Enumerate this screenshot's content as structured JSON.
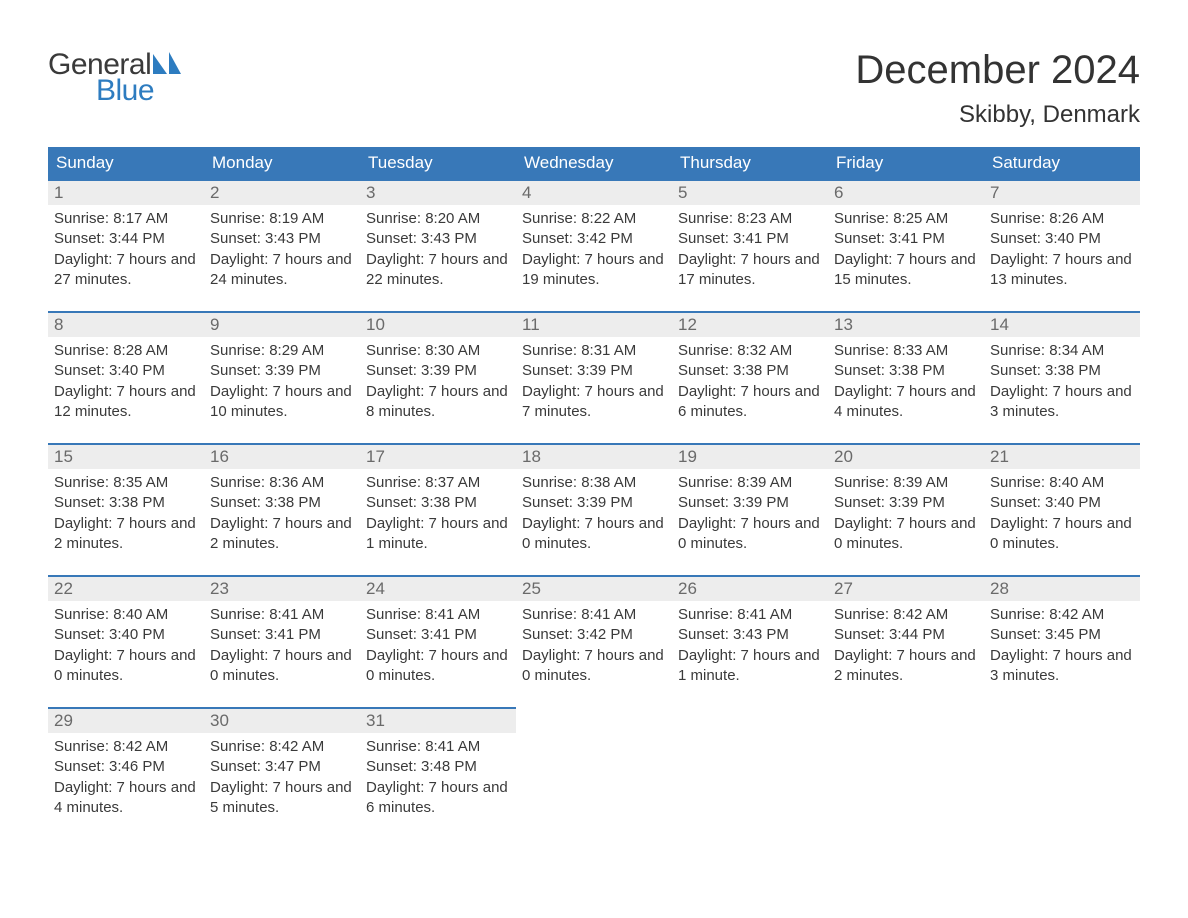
{
  "logo": {
    "text1": "General",
    "text2": "Blue",
    "text1_color": "#3a3a3a",
    "text2_color": "#2d7cc0",
    "sail_color": "#2d7cc0"
  },
  "header": {
    "month_title": "December 2024",
    "location": "Skibby, Denmark"
  },
  "calendar": {
    "type": "calendar-table",
    "header_bg": "#3878b8",
    "header_fg": "#ffffff",
    "daynum_bg": "#ededed",
    "daynum_fg": "#6a6a6a",
    "cell_border_top": "#3878b8",
    "body_text_color": "#3a3a3a",
    "background_color": "#ffffff",
    "day_labels": [
      "Sunday",
      "Monday",
      "Tuesday",
      "Wednesday",
      "Thursday",
      "Friday",
      "Saturday"
    ],
    "weeks": [
      [
        {
          "n": "1",
          "sr": "Sunrise: 8:17 AM",
          "ss": "Sunset: 3:44 PM",
          "dl": "Daylight: 7 hours and 27 minutes."
        },
        {
          "n": "2",
          "sr": "Sunrise: 8:19 AM",
          "ss": "Sunset: 3:43 PM",
          "dl": "Daylight: 7 hours and 24 minutes."
        },
        {
          "n": "3",
          "sr": "Sunrise: 8:20 AM",
          "ss": "Sunset: 3:43 PM",
          "dl": "Daylight: 7 hours and 22 minutes."
        },
        {
          "n": "4",
          "sr": "Sunrise: 8:22 AM",
          "ss": "Sunset: 3:42 PM",
          "dl": "Daylight: 7 hours and 19 minutes."
        },
        {
          "n": "5",
          "sr": "Sunrise: 8:23 AM",
          "ss": "Sunset: 3:41 PM",
          "dl": "Daylight: 7 hours and 17 minutes."
        },
        {
          "n": "6",
          "sr": "Sunrise: 8:25 AM",
          "ss": "Sunset: 3:41 PM",
          "dl": "Daylight: 7 hours and 15 minutes."
        },
        {
          "n": "7",
          "sr": "Sunrise: 8:26 AM",
          "ss": "Sunset: 3:40 PM",
          "dl": "Daylight: 7 hours and 13 minutes."
        }
      ],
      [
        {
          "n": "8",
          "sr": "Sunrise: 8:28 AM",
          "ss": "Sunset: 3:40 PM",
          "dl": "Daylight: 7 hours and 12 minutes."
        },
        {
          "n": "9",
          "sr": "Sunrise: 8:29 AM",
          "ss": "Sunset: 3:39 PM",
          "dl": "Daylight: 7 hours and 10 minutes."
        },
        {
          "n": "10",
          "sr": "Sunrise: 8:30 AM",
          "ss": "Sunset: 3:39 PM",
          "dl": "Daylight: 7 hours and 8 minutes."
        },
        {
          "n": "11",
          "sr": "Sunrise: 8:31 AM",
          "ss": "Sunset: 3:39 PM",
          "dl": "Daylight: 7 hours and 7 minutes."
        },
        {
          "n": "12",
          "sr": "Sunrise: 8:32 AM",
          "ss": "Sunset: 3:38 PM",
          "dl": "Daylight: 7 hours and 6 minutes."
        },
        {
          "n": "13",
          "sr": "Sunrise: 8:33 AM",
          "ss": "Sunset: 3:38 PM",
          "dl": "Daylight: 7 hours and 4 minutes."
        },
        {
          "n": "14",
          "sr": "Sunrise: 8:34 AM",
          "ss": "Sunset: 3:38 PM",
          "dl": "Daylight: 7 hours and 3 minutes."
        }
      ],
      [
        {
          "n": "15",
          "sr": "Sunrise: 8:35 AM",
          "ss": "Sunset: 3:38 PM",
          "dl": "Daylight: 7 hours and 2 minutes."
        },
        {
          "n": "16",
          "sr": "Sunrise: 8:36 AM",
          "ss": "Sunset: 3:38 PM",
          "dl": "Daylight: 7 hours and 2 minutes."
        },
        {
          "n": "17",
          "sr": "Sunrise: 8:37 AM",
          "ss": "Sunset: 3:38 PM",
          "dl": "Daylight: 7 hours and 1 minute."
        },
        {
          "n": "18",
          "sr": "Sunrise: 8:38 AM",
          "ss": "Sunset: 3:39 PM",
          "dl": "Daylight: 7 hours and 0 minutes."
        },
        {
          "n": "19",
          "sr": "Sunrise: 8:39 AM",
          "ss": "Sunset: 3:39 PM",
          "dl": "Daylight: 7 hours and 0 minutes."
        },
        {
          "n": "20",
          "sr": "Sunrise: 8:39 AM",
          "ss": "Sunset: 3:39 PM",
          "dl": "Daylight: 7 hours and 0 minutes."
        },
        {
          "n": "21",
          "sr": "Sunrise: 8:40 AM",
          "ss": "Sunset: 3:40 PM",
          "dl": "Daylight: 7 hours and 0 minutes."
        }
      ],
      [
        {
          "n": "22",
          "sr": "Sunrise: 8:40 AM",
          "ss": "Sunset: 3:40 PM",
          "dl": "Daylight: 7 hours and 0 minutes."
        },
        {
          "n": "23",
          "sr": "Sunrise: 8:41 AM",
          "ss": "Sunset: 3:41 PM",
          "dl": "Daylight: 7 hours and 0 minutes."
        },
        {
          "n": "24",
          "sr": "Sunrise: 8:41 AM",
          "ss": "Sunset: 3:41 PM",
          "dl": "Daylight: 7 hours and 0 minutes."
        },
        {
          "n": "25",
          "sr": "Sunrise: 8:41 AM",
          "ss": "Sunset: 3:42 PM",
          "dl": "Daylight: 7 hours and 0 minutes."
        },
        {
          "n": "26",
          "sr": "Sunrise: 8:41 AM",
          "ss": "Sunset: 3:43 PM",
          "dl": "Daylight: 7 hours and 1 minute."
        },
        {
          "n": "27",
          "sr": "Sunrise: 8:42 AM",
          "ss": "Sunset: 3:44 PM",
          "dl": "Daylight: 7 hours and 2 minutes."
        },
        {
          "n": "28",
          "sr": "Sunrise: 8:42 AM",
          "ss": "Sunset: 3:45 PM",
          "dl": "Daylight: 7 hours and 3 minutes."
        }
      ],
      [
        {
          "n": "29",
          "sr": "Sunrise: 8:42 AM",
          "ss": "Sunset: 3:46 PM",
          "dl": "Daylight: 7 hours and 4 minutes."
        },
        {
          "n": "30",
          "sr": "Sunrise: 8:42 AM",
          "ss": "Sunset: 3:47 PM",
          "dl": "Daylight: 7 hours and 5 minutes."
        },
        {
          "n": "31",
          "sr": "Sunrise: 8:41 AM",
          "ss": "Sunset: 3:48 PM",
          "dl": "Daylight: 7 hours and 6 minutes."
        },
        null,
        null,
        null,
        null
      ]
    ]
  }
}
